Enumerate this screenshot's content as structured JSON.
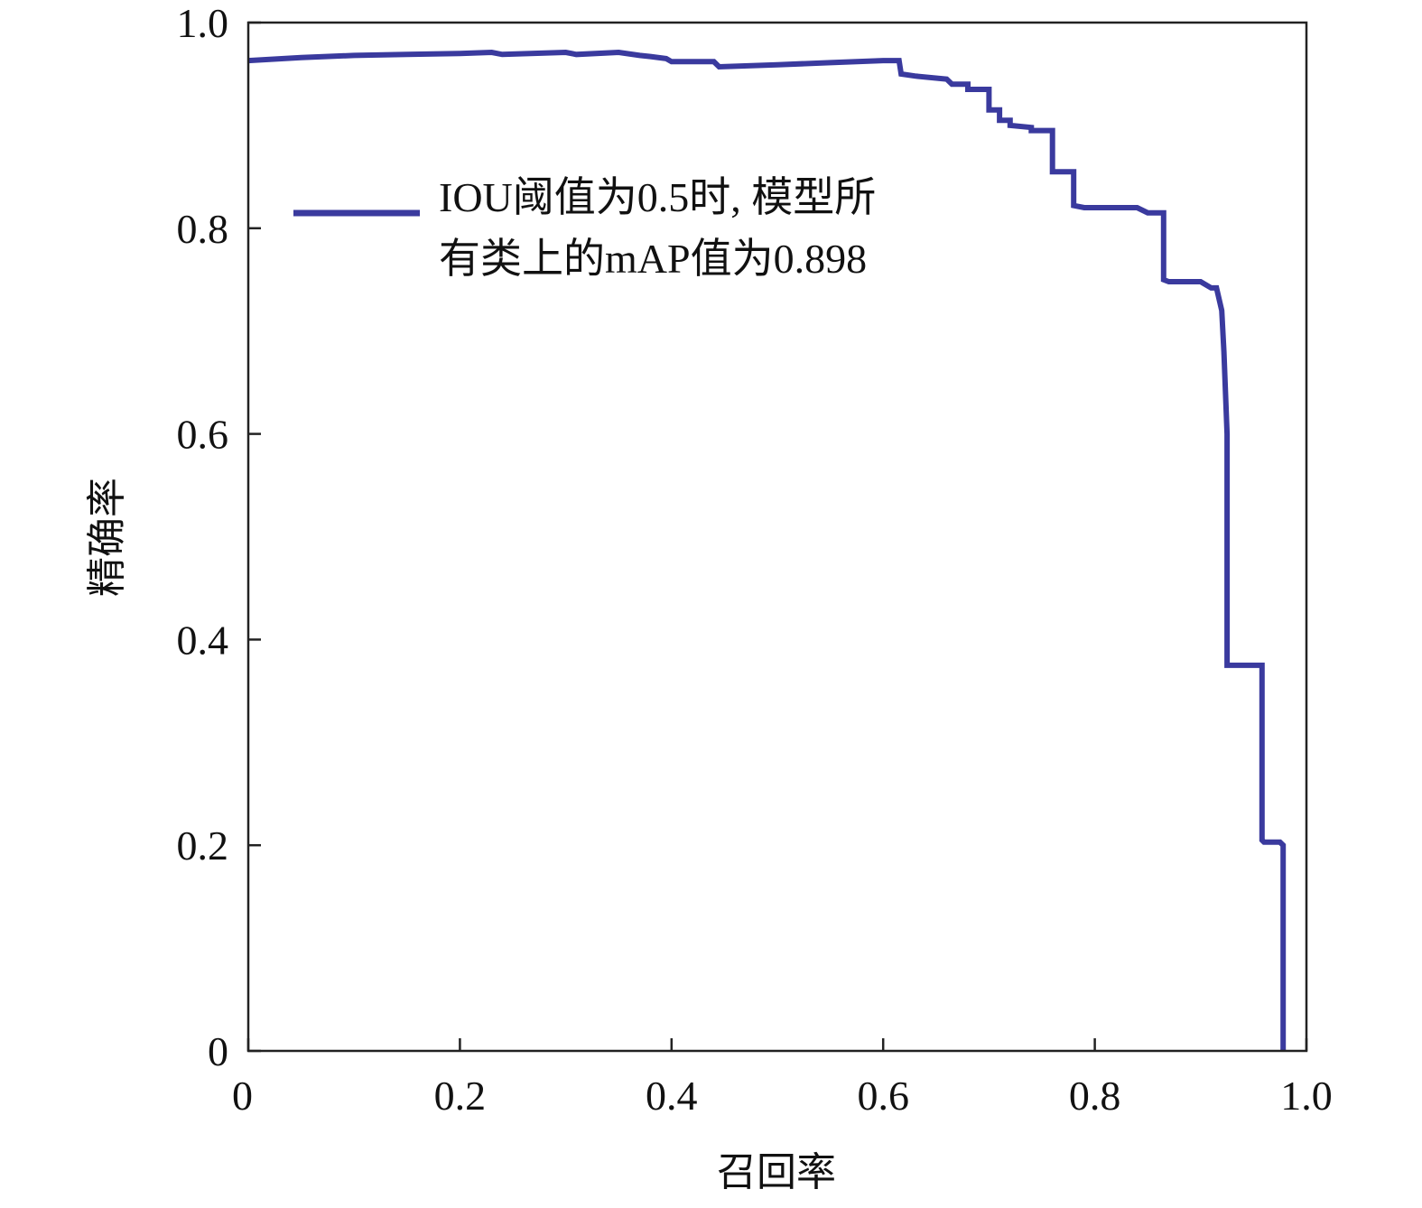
{
  "chart_data": {
    "type": "line",
    "title": "",
    "xlabel": "召回率",
    "ylabel": "精确率",
    "xlim": [
      0,
      1.0
    ],
    "ylim": [
      0,
      1.0
    ],
    "xticks": [
      "0",
      "0.2",
      "0.4",
      "0.6",
      "0.8",
      "1.0"
    ],
    "yticks": [
      "0",
      "0.2",
      "0.4",
      "0.6",
      "0.8",
      "1.0"
    ],
    "grid": false,
    "legend_position": "top-left",
    "legend": {
      "line1": "IOU阈值为0.5时, 模型所",
      "line2": "有类上的mAP值为0.898"
    },
    "series": [
      {
        "name": "IOU阈值为0.5时, 模型所有类上的mAP值为0.898",
        "color": "#3a3a9e",
        "x": [
          0.0,
          0.05,
          0.1,
          0.15,
          0.2,
          0.23,
          0.24,
          0.3,
          0.31,
          0.35,
          0.37,
          0.38,
          0.395,
          0.4,
          0.44,
          0.445,
          0.5,
          0.55,
          0.6,
          0.615,
          0.617,
          0.63,
          0.66,
          0.665,
          0.68,
          0.68,
          0.7,
          0.7,
          0.71,
          0.71,
          0.72,
          0.72,
          0.74,
          0.74,
          0.76,
          0.76,
          0.78,
          0.78,
          0.79,
          0.82,
          0.84,
          0.85,
          0.865,
          0.865,
          0.87,
          0.9,
          0.91,
          0.915,
          0.92,
          0.922,
          0.925,
          0.925,
          0.958,
          0.958,
          0.96,
          0.975,
          0.978,
          0.978
        ],
        "y": [
          0.963,
          0.966,
          0.968,
          0.969,
          0.97,
          0.971,
          0.969,
          0.971,
          0.969,
          0.971,
          0.968,
          0.967,
          0.965,
          0.962,
          0.962,
          0.957,
          0.959,
          0.961,
          0.963,
          0.963,
          0.95,
          0.948,
          0.945,
          0.94,
          0.94,
          0.935,
          0.935,
          0.915,
          0.915,
          0.905,
          0.905,
          0.9,
          0.898,
          0.895,
          0.895,
          0.855,
          0.855,
          0.822,
          0.82,
          0.82,
          0.82,
          0.815,
          0.815,
          0.75,
          0.748,
          0.748,
          0.742,
          0.742,
          0.72,
          0.68,
          0.6,
          0.375,
          0.375,
          0.205,
          0.203,
          0.203,
          0.2,
          0.0
        ]
      }
    ]
  }
}
